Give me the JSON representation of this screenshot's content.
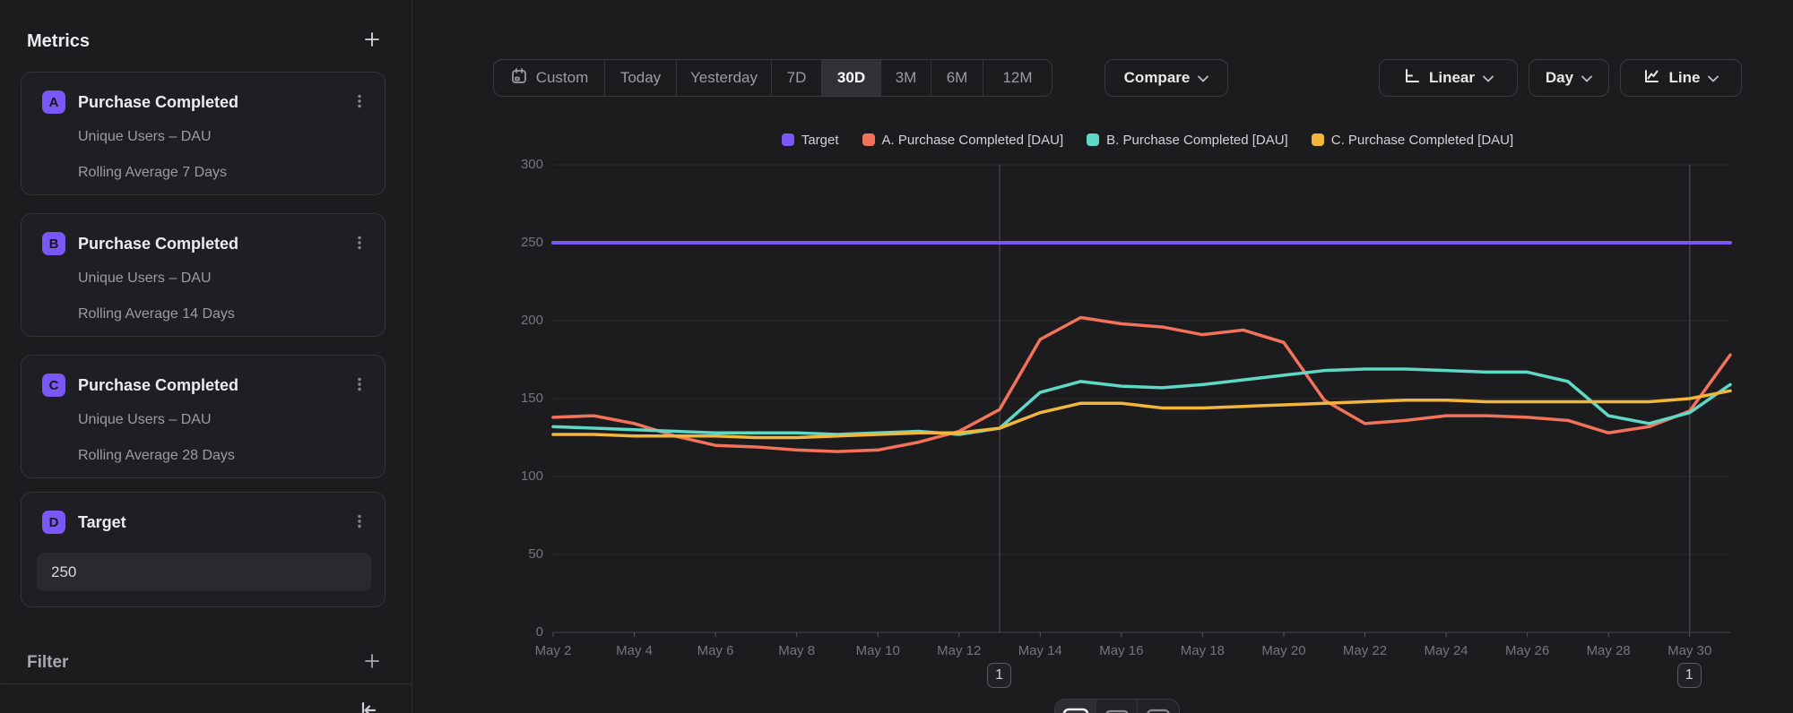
{
  "sidebar": {
    "metrics_header": "Metrics",
    "filter_header": "Filter",
    "cards": [
      {
        "badge": "A",
        "title": "Purchase Completed",
        "line1": "Unique Users – DAU",
        "line2": "Rolling Average 7 Days"
      },
      {
        "badge": "B",
        "title": "Purchase Completed",
        "line1": "Unique Users – DAU",
        "line2": "Rolling Average 14 Days"
      },
      {
        "badge": "C",
        "title": "Purchase Completed",
        "line1": "Unique Users – DAU",
        "line2": "Rolling Average 28 Days"
      }
    ],
    "target_card": {
      "badge": "D",
      "title": "Target",
      "value": "250"
    }
  },
  "toolbar": {
    "ranges": [
      "Custom",
      "Today",
      "Yesterday",
      "7D",
      "30D",
      "3M",
      "6M",
      "12M"
    ],
    "selected_range": "30D",
    "compare_label": "Compare",
    "scale_label": "Linear",
    "granularity_label": "Day",
    "chart_type_label": "Line"
  },
  "chart_data": {
    "type": "line",
    "ylim": [
      0,
      300
    ],
    "yticks": [
      0,
      50,
      100,
      150,
      200,
      250,
      300
    ],
    "x_tick_step": 2,
    "grid": true,
    "legend_position": "top-center",
    "days": [
      "May 2",
      "May 3",
      "May 4",
      "May 5",
      "May 6",
      "May 7",
      "May 8",
      "May 9",
      "May 10",
      "May 11",
      "May 12",
      "May 13",
      "May 14",
      "May 15",
      "May 16",
      "May 17",
      "May 18",
      "May 19",
      "May 20",
      "May 21",
      "May 22",
      "May 23",
      "May 24",
      "May 25",
      "May 26",
      "May 27",
      "May 28",
      "May 29",
      "May 30",
      "May 31"
    ],
    "target": {
      "name": "Target",
      "color": "#7a58f6",
      "value": 250
    },
    "series": [
      {
        "name": "A. Purchase Completed [DAU]",
        "color": "#f3735a",
        "values": [
          138,
          139,
          134,
          126,
          120,
          119,
          117,
          116,
          117,
          122,
          129,
          143,
          188,
          202,
          198,
          196,
          191,
          194,
          186,
          149,
          134,
          136,
          139,
          139,
          138,
          136,
          128,
          132,
          142,
          178
        ]
      },
      {
        "name": "B. Purchase Completed [DAU]",
        "color": "#5fd8c6",
        "values": [
          132,
          131,
          130,
          129,
          128,
          128,
          128,
          127,
          128,
          129,
          127,
          131,
          154,
          161,
          158,
          157,
          159,
          162,
          165,
          168,
          169,
          169,
          168,
          167,
          167,
          161,
          139,
          134,
          141,
          159
        ]
      },
      {
        "name": "C. Purchase Completed [DAU]",
        "color": "#f3b63d",
        "values": [
          127,
          127,
          126,
          126,
          126,
          125,
          125,
          126,
          127,
          128,
          128,
          131,
          141,
          147,
          147,
          144,
          144,
          145,
          146,
          147,
          148,
          149,
          149,
          148,
          148,
          148,
          148,
          148,
          150,
          155
        ]
      }
    ],
    "legend": [
      "Target",
      "A. Purchase Completed [DAU]",
      "B. Purchase Completed [DAU]",
      "C. Purchase Completed [DAU]"
    ],
    "annotations": [
      {
        "label": "1",
        "date": "May 13"
      },
      {
        "label": "1",
        "date": "May 30"
      }
    ]
  }
}
